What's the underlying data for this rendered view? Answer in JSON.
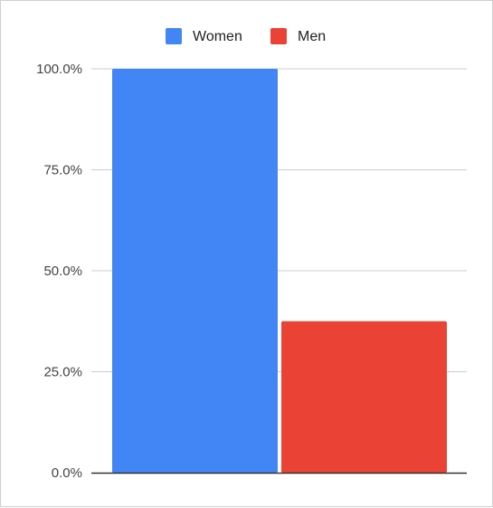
{
  "chart_data": {
    "type": "bar",
    "title": "",
    "xlabel": "",
    "ylabel": "",
    "categories": [
      ""
    ],
    "series": [
      {
        "name": "Women",
        "values": [
          100.0
        ],
        "color": "#4285f4"
      },
      {
        "name": "Men",
        "values": [
          37.5
        ],
        "color": "#ea4335"
      }
    ],
    "ylim": [
      0,
      100
    ],
    "y_ticks": [
      {
        "value": 0,
        "label": "0.0%"
      },
      {
        "value": 25,
        "label": "25.0%"
      },
      {
        "value": 50,
        "label": "50.0%"
      },
      {
        "value": 75,
        "label": "75.0%"
      },
      {
        "value": 100,
        "label": "100.0%"
      }
    ],
    "grid": true,
    "legend_position": "top-center",
    "gridline_color": "#cccccc",
    "axis_color": "#333333"
  }
}
